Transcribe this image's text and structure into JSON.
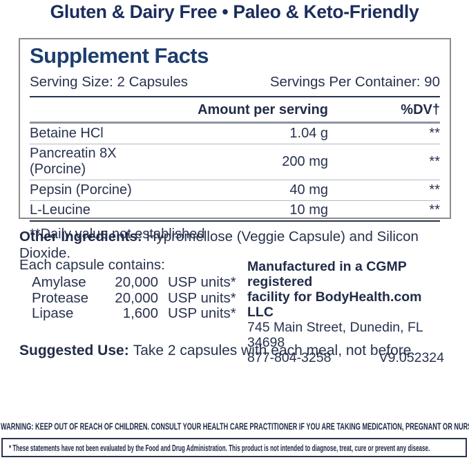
{
  "header": {
    "text": "Gluten & Dairy Free • Paleo & Keto-Friendly"
  },
  "panel": {
    "title": "Supplement Facts",
    "serving_size": "Serving Size: 2 Capsules",
    "servings_per_container": "Servings Per Container: 90",
    "columns": {
      "amount": "Amount per serving",
      "dv": "%DV†"
    },
    "rows": [
      {
        "name": "Betaine HCl",
        "amount": "1.04 g",
        "dv": "**"
      },
      {
        "name": "Pancreatin 8X (Porcine)",
        "amount": "200 mg",
        "dv": "**"
      },
      {
        "name": "Pepsin (Porcine)",
        "amount": "40 mg",
        "dv": "**"
      },
      {
        "name": "L-Leucine",
        "amount": "10 mg",
        "dv": "**"
      }
    ],
    "footnote": "**Daily value not established"
  },
  "other_ingredients": {
    "label": "Other Ingredients:",
    "text": "Hypromellose (Veggie Capsule) and Silicon Dioxide."
  },
  "capsule_contents": {
    "heading": "Each capsule contains:",
    "rows": [
      {
        "name": "Amylase",
        "value": "20,000",
        "unit": "USP units*"
      },
      {
        "name": "Protease",
        "value": "20,000",
        "unit": "USP units*"
      },
      {
        "name": "Lipase",
        "value": "1,600",
        "unit": "USP units*"
      }
    ]
  },
  "manufacturer": {
    "line1": "Manufactured in a CGMP registered",
    "line2": "facility for BodyHealth.com LLC",
    "address": "745 Main Street, Dunedin, FL 34698",
    "phone": "877-804-3258",
    "version": "V9.052324"
  },
  "suggested_use": {
    "label": "Suggested Use:",
    "text": "Take 2 capsules with each meal, not before."
  },
  "warning": "WARNING: KEEP OUT OF REACH OF CHILDREN. CONSULT YOUR HEALTH CARE PRACTITIONER IF YOU ARE TAKING MEDICATION, PREGNANT OR NURSING.",
  "disclaimer": "* These statements have not been evaluated by the Food and Drug Administration. This product is not intended to diagnose, treat, cure or prevent any disease.",
  "colors": {
    "title_navy": "#1d3e6e",
    "header_navy": "#1b2d5c",
    "body_text": "#27324e",
    "panel_border": "#8c8c8c",
    "rule_dark": "#27324e",
    "rule_thick": "#8b93a0",
    "row_separator": "#b3b8c2"
  }
}
